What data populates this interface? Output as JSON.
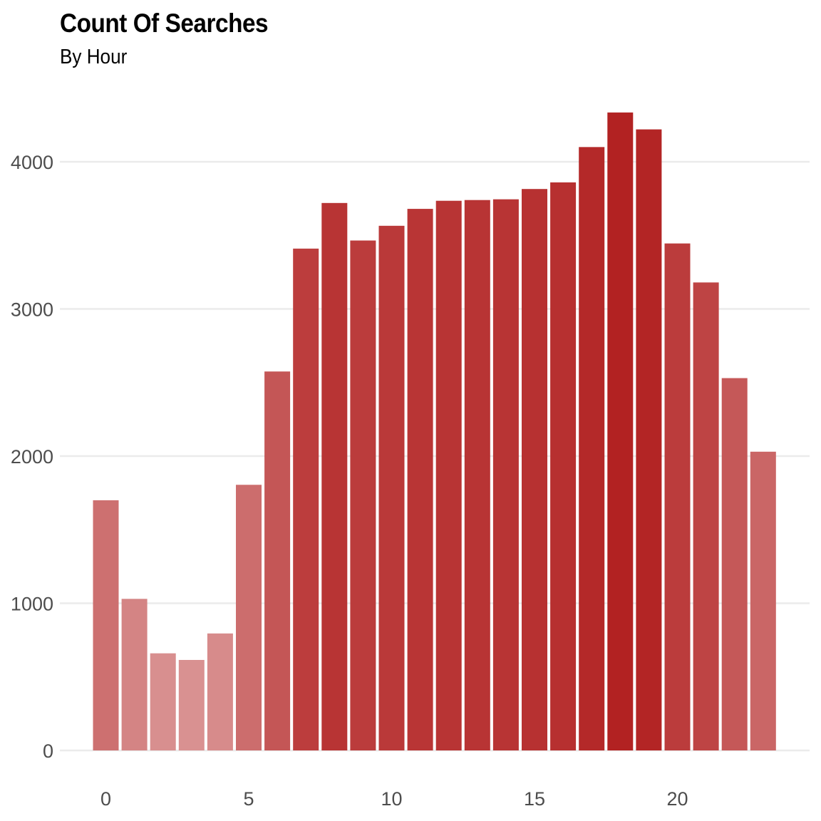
{
  "chart_data": {
    "type": "bar",
    "title": "Count Of Searches",
    "subtitle": "By Hour",
    "xlabel": "",
    "ylabel": "",
    "x": [
      0,
      1,
      2,
      3,
      4,
      5,
      6,
      7,
      8,
      9,
      10,
      11,
      12,
      13,
      14,
      15,
      16,
      17,
      18,
      19,
      20,
      21,
      22,
      23
    ],
    "values": [
      1700,
      1030,
      660,
      615,
      795,
      1805,
      2575,
      3410,
      3720,
      3465,
      3565,
      3680,
      3735,
      3740,
      3745,
      3815,
      3860,
      4100,
      4335,
      4220,
      3445,
      3180,
      2530,
      2030
    ],
    "x_ticks": [
      "0",
      "5",
      "10",
      "15",
      "20"
    ],
    "y_ticks": [
      "0",
      "1000",
      "2000",
      "3000",
      "4000"
    ],
    "ylim": [
      0,
      4335
    ],
    "grid": true,
    "legend": "none",
    "colors": {
      "bar_base": "#b22222",
      "gridline": "#ebebeb",
      "tick_text": "#4d4d4d"
    }
  }
}
